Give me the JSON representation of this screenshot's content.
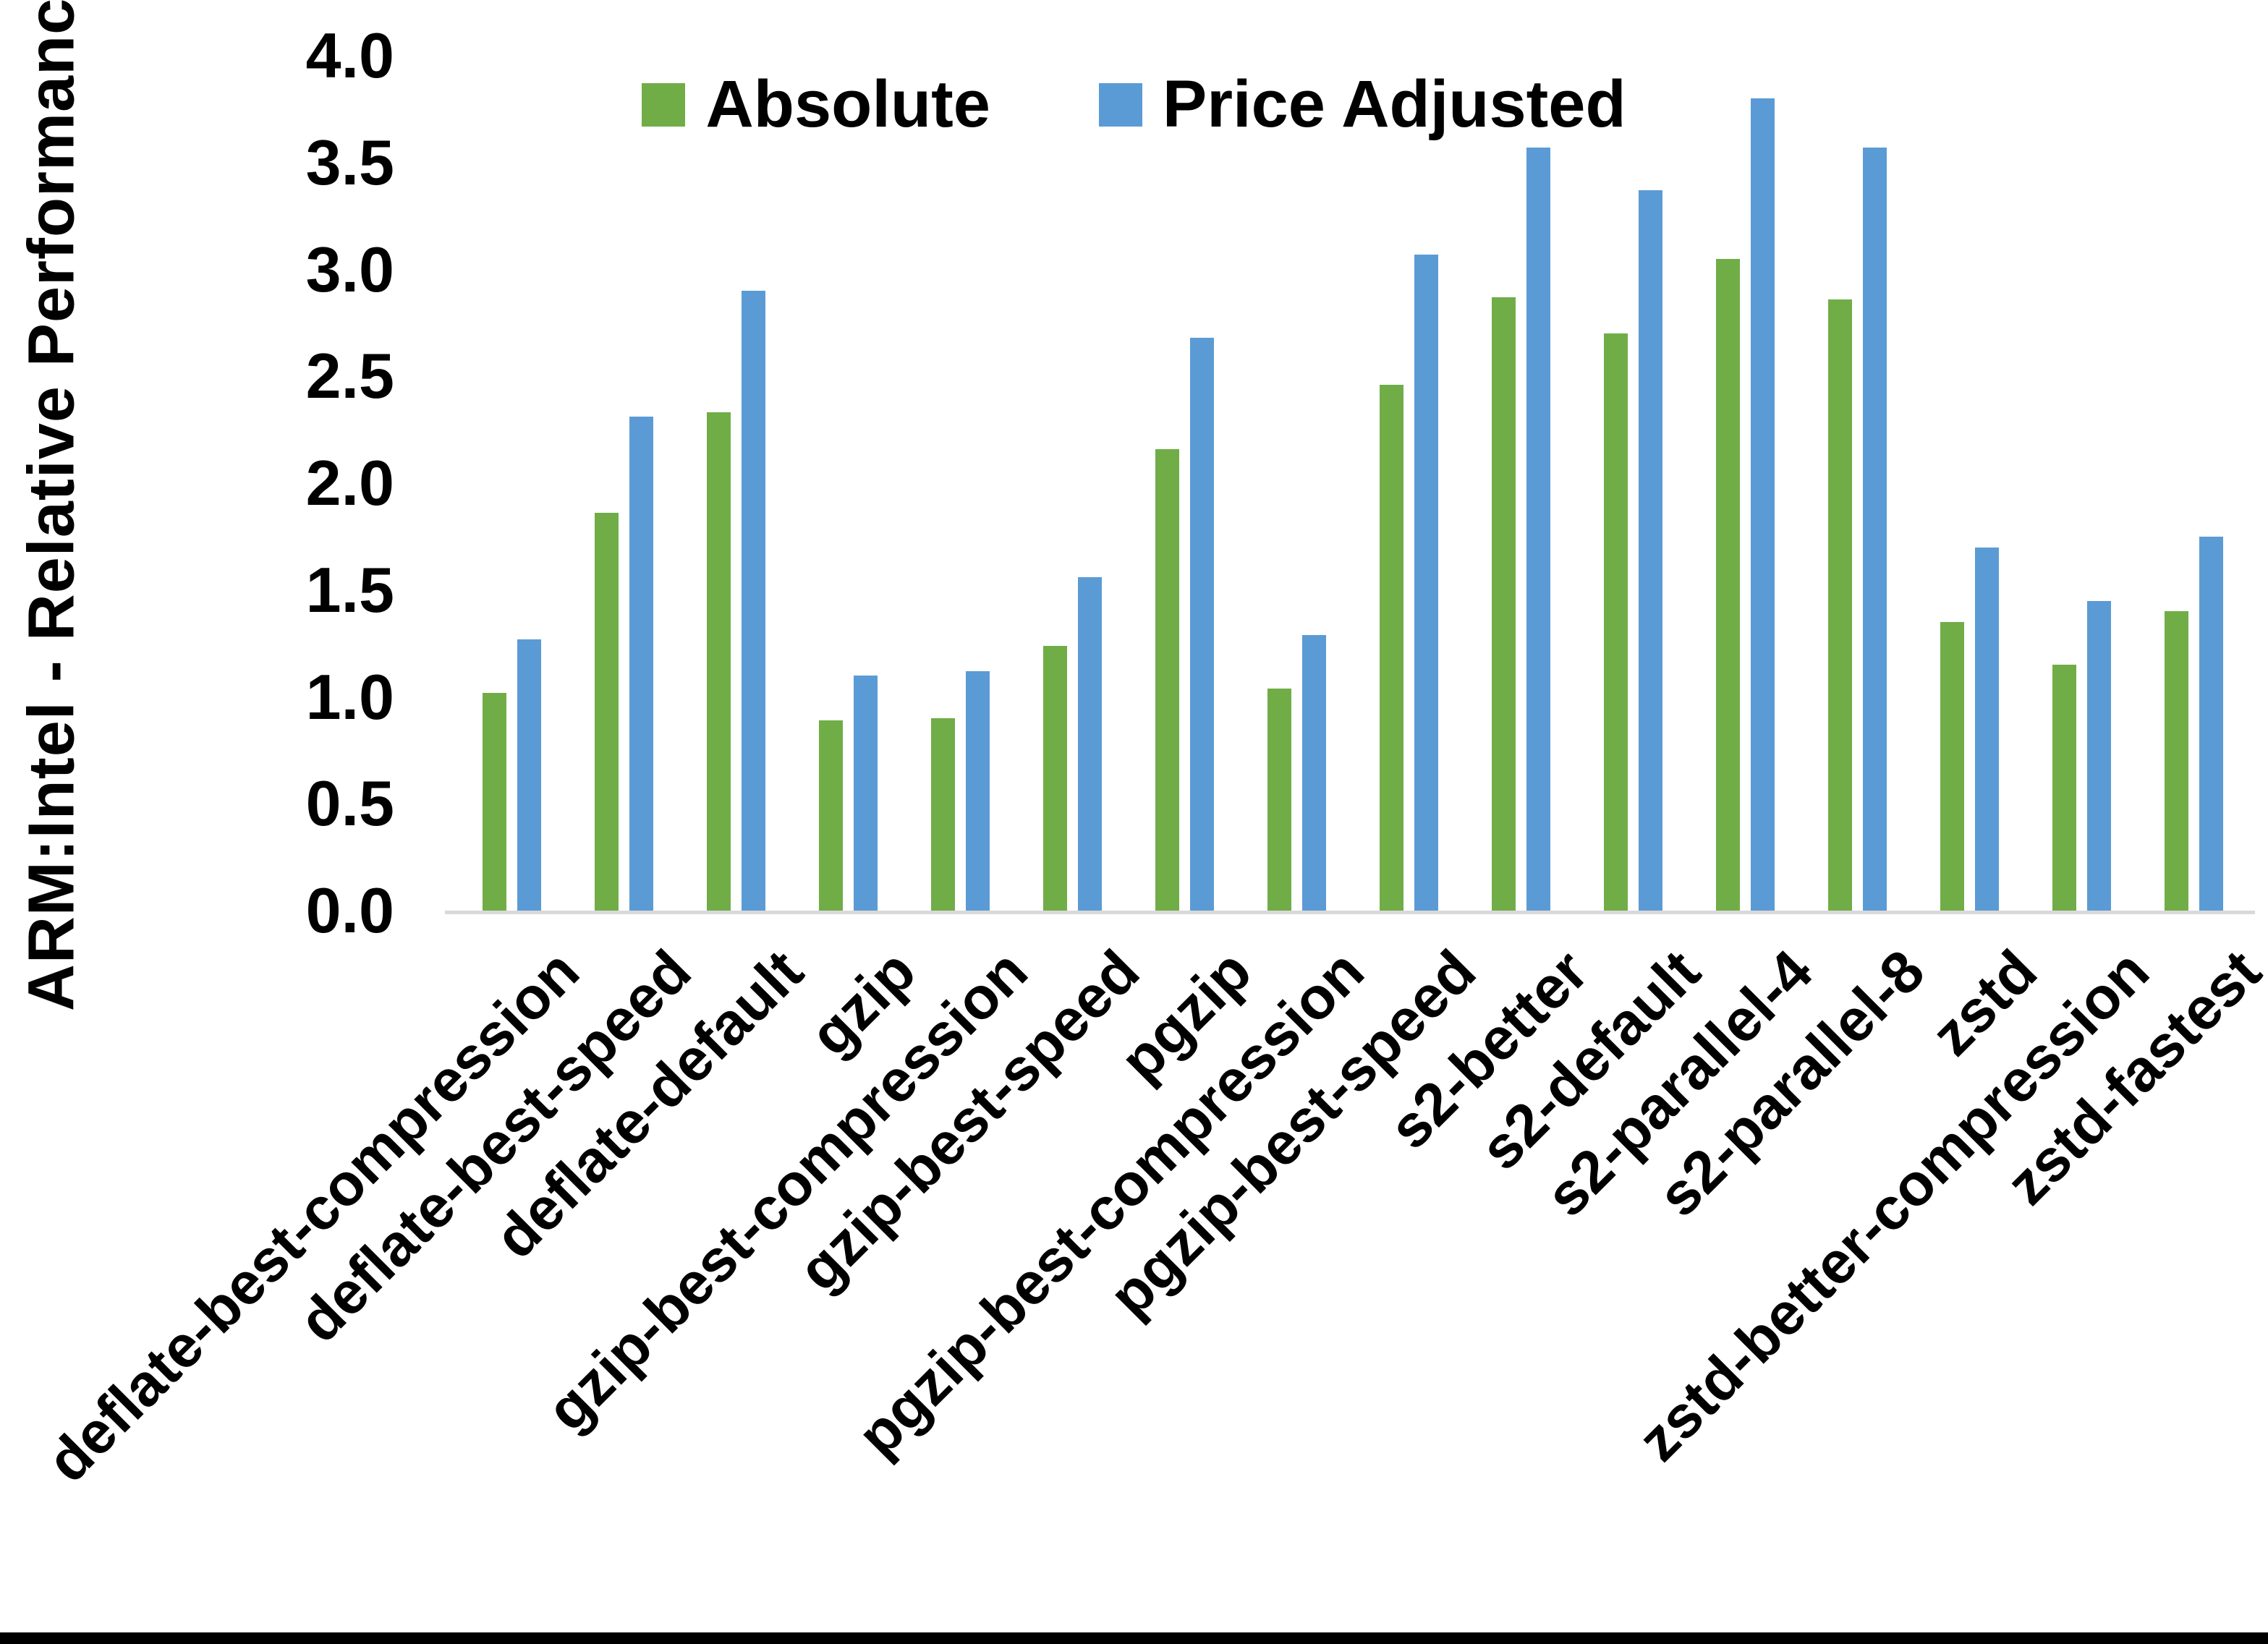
{
  "chart_data": {
    "type": "bar",
    "title": "",
    "xlabel": "",
    "ylabel": "ARM:Intel - Relative Performance",
    "ylim": [
      0,
      4
    ],
    "ytick_step": 0.5,
    "ytick_labels": [
      "4.0",
      "3.5",
      "3.0",
      "2.5",
      "2.0",
      "1.5",
      "1.0",
      "0.5",
      "0.0"
    ],
    "grid": false,
    "legend_position": "top-center",
    "categories": [
      "deflate-best-compression",
      "deflate-best-speed",
      "deflate-default",
      "gzip",
      "gzip-best-compression",
      "gzip-best-speed",
      "pgzip",
      "pgzip-best-compression",
      "pgzip-best-speed",
      "s2-better",
      "s2-default",
      "s2-parallel-4",
      "s2-parallel-8",
      "zstd",
      "zstd-better-compression",
      "zstd-fastest"
    ],
    "series": [
      {
        "name": "Absolute",
        "color": "#70AD47",
        "values": [
          1.02,
          1.86,
          2.33,
          0.89,
          0.9,
          1.24,
          2.16,
          1.04,
          2.46,
          2.87,
          2.7,
          3.05,
          2.86,
          1.35,
          1.15,
          1.4
        ]
      },
      {
        "name": "Price Adjusted",
        "color": "#5B9BD5",
        "values": [
          1.27,
          2.31,
          2.9,
          1.1,
          1.12,
          1.56,
          2.68,
          1.29,
          3.07,
          3.57,
          3.37,
          3.8,
          3.57,
          1.7,
          1.45,
          1.75
        ]
      }
    ]
  },
  "colors": {
    "background": "#FFFFFF",
    "axis_line": "#D9D9D9",
    "text": "#000000",
    "bottom_border": "#000000"
  }
}
